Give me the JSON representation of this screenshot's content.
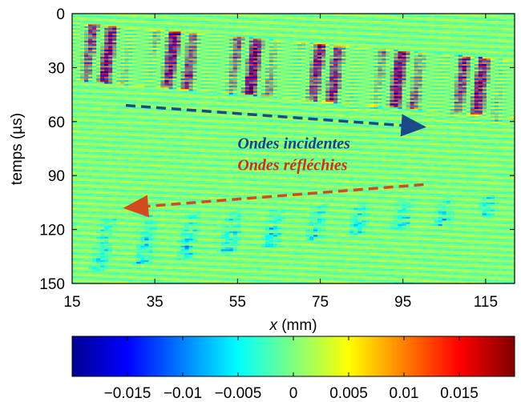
{
  "chart_data": [
    {
      "type": "heatmap",
      "title": "",
      "xlabel_var": "x",
      "xlabel_unit": " (mm)",
      "ylabel": "temps (µs)",
      "xlim": [
        15,
        122
      ],
      "ylim": [
        0,
        150
      ],
      "y_reversed": true,
      "xticks": [
        15,
        35,
        55,
        75,
        95,
        115
      ],
      "yticks": [
        0,
        30,
        60,
        90,
        120,
        150
      ],
      "background_value": 0,
      "wavefronts": [
        {
          "name": "incident",
          "t_top": [
            [
              15,
              5
            ],
            [
              122,
              26
            ]
          ],
          "t_bottom": [
            [
              15,
              37
            ],
            [
              122,
              58
            ]
          ],
          "amplitude": 0.016
        },
        {
          "name": "reflected",
          "t_top": [
            [
              122,
              100
            ],
            [
              15,
              115
            ]
          ],
          "t_bottom": [
            [
              122,
              112
            ],
            [
              15,
              145
            ]
          ],
          "amplitude": 0.012
        }
      ],
      "annotations": [
        {
          "text": "Ondes incidentes",
          "color": "#1b3f8f",
          "x": 55,
          "y": 75
        },
        {
          "text": "Ondes réfléchies",
          "color": "#c8321e",
          "x": 55,
          "y": 87
        }
      ],
      "arrows": [
        {
          "name": "incident-arrow",
          "color": "#1b4a8a",
          "from": [
            28,
            51
          ],
          "to": [
            100,
            63
          ]
        },
        {
          "name": "reflected-arrow",
          "color": "#d24b1f",
          "from": [
            100,
            95
          ],
          "to": [
            28,
            108
          ]
        }
      ]
    },
    {
      "type": "colorbar",
      "colormap": "jet",
      "range": [
        -0.02,
        0.02
      ],
      "ticks": [
        -0.015,
        -0.01,
        -0.005,
        0,
        0.005,
        0.01,
        0.015
      ],
      "tick_labels": [
        "−0.015",
        "−0.01",
        "−0.005",
        "0",
        "0.005",
        "0.01",
        "0.015"
      ]
    }
  ]
}
